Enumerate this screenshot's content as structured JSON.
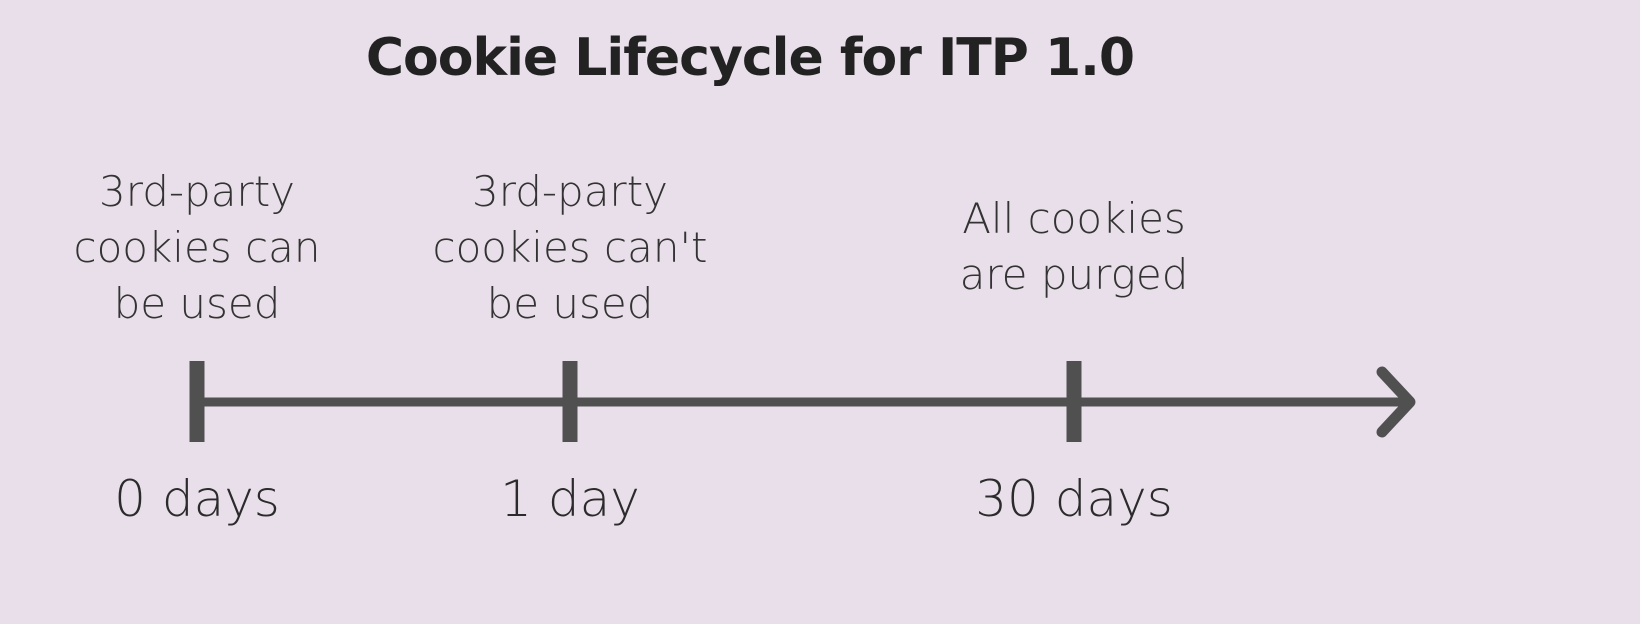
{
  "title": "Cookie Lifecycle for ITP 1.0",
  "colors": {
    "background": "#e9dfea",
    "line": "#505050",
    "text": "#2b2b2b"
  },
  "milestones": [
    {
      "label": "3rd-party\ncookies can\nbe used",
      "time": "0 days"
    },
    {
      "label": "3rd-party\ncookies can't\nbe used",
      "time": "1 day"
    },
    {
      "label": "All cookies\nare purged",
      "time": "30 days"
    }
  ]
}
